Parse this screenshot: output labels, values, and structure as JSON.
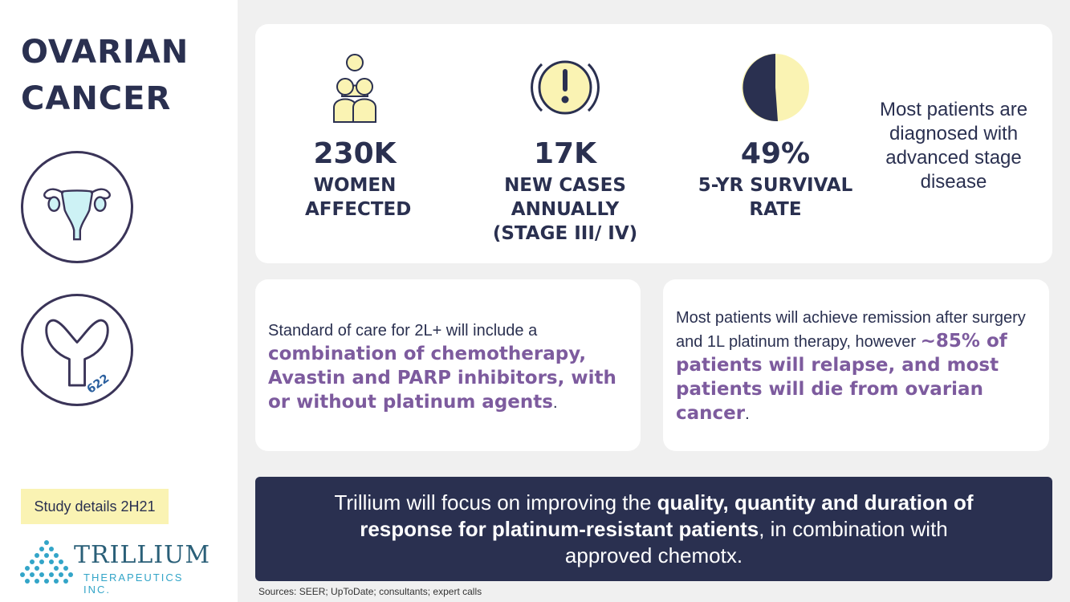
{
  "sidebar": {
    "title_line1": "OVARIAN",
    "title_line2": "CANCER",
    "antibody_label": "622",
    "study_badge": "Study details 2H21",
    "logo": {
      "name": "TRILLIUM",
      "subtitle": "THERAPEUTICS INC."
    }
  },
  "stats": [
    {
      "value": "230K",
      "label_lines": [
        "WOMEN",
        "AFFECTED"
      ],
      "icon": "people-icon"
    },
    {
      "value": "17K",
      "label_lines": [
        "NEW CASES",
        "ANNUALLY",
        "(STAGE III/ IV)"
      ],
      "icon": "alert-icon"
    },
    {
      "value": "49%",
      "label_lines": [
        "5-YR SURVIVAL",
        "RATE"
      ],
      "icon": "pie-half-icon"
    }
  ],
  "stat_note": "Most patients are diagnosed with advanced stage disease",
  "info_left": {
    "intro": "Standard of care for 2L+ will include a ",
    "highlight": "combination of chemotherapy, Avastin and PARP inhibitors, with or without platinum agents",
    "end": "."
  },
  "info_right": {
    "intro": "Most patients will achieve remission after surgery and 1L platinum therapy, however ",
    "highlight": "~85% of patients will relapse, and most patients will die from ovarian cancer",
    "end": "."
  },
  "banner": {
    "part1": "Trillium will focus on improving the ",
    "bold1": "quality, quantity and duration of response for platinum-resistant patients",
    "part2": ", in combination with approved chemotx."
  },
  "sources": "Sources: SEER; UpToDate; consultants; expert calls",
  "colors": {
    "navy": "#2a3050",
    "purple": "#7d5b9e",
    "yellow": "#faf3b3",
    "cyan": "#cdf2f5"
  }
}
